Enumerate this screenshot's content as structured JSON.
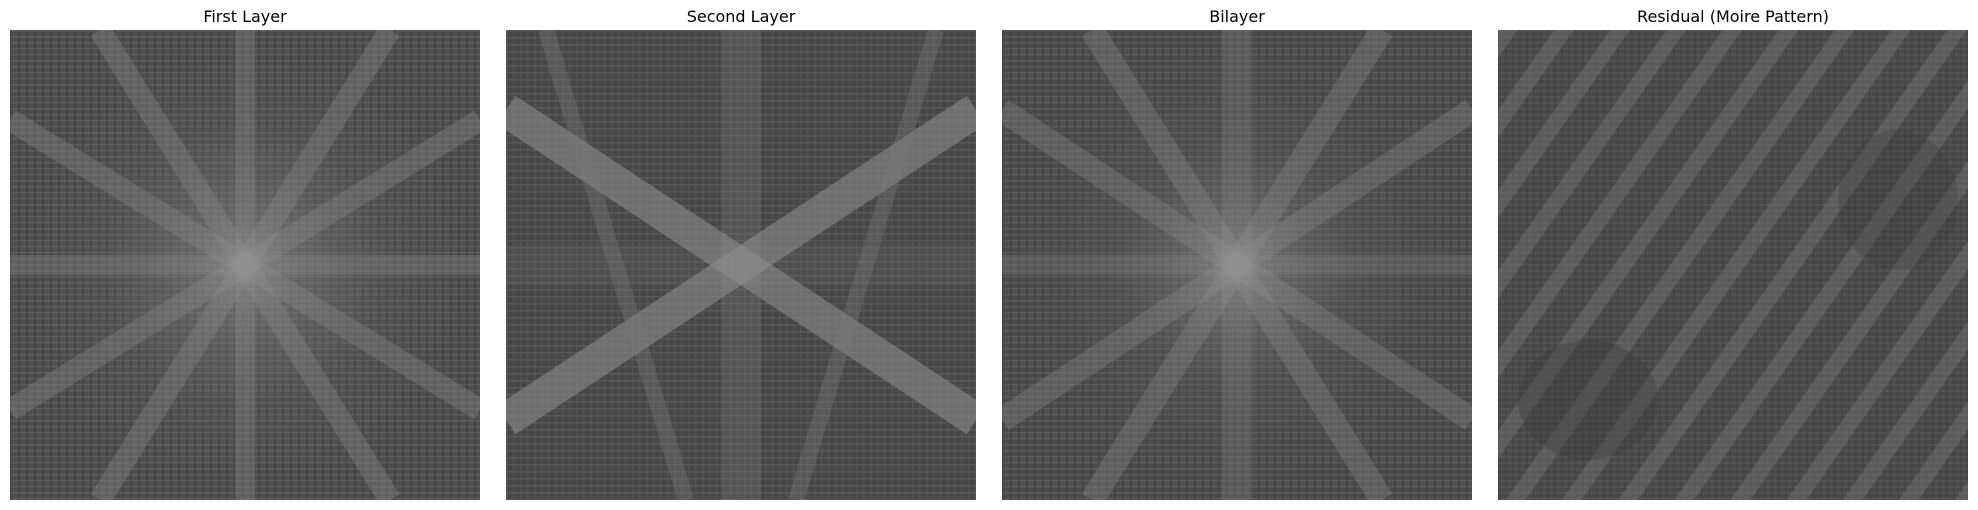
{
  "figure": {
    "panels": [
      {
        "title": "First Layer",
        "pattern": "fft-cross-star"
      },
      {
        "title": "Second Layer",
        "pattern": "fft-diagonal-x"
      },
      {
        "title": "Bilayer",
        "pattern": "fft-combined"
      },
      {
        "title": "Residual (Moire Pattern)",
        "pattern": "diagonal-moire-stripes"
      }
    ],
    "colormap": "gray"
  }
}
